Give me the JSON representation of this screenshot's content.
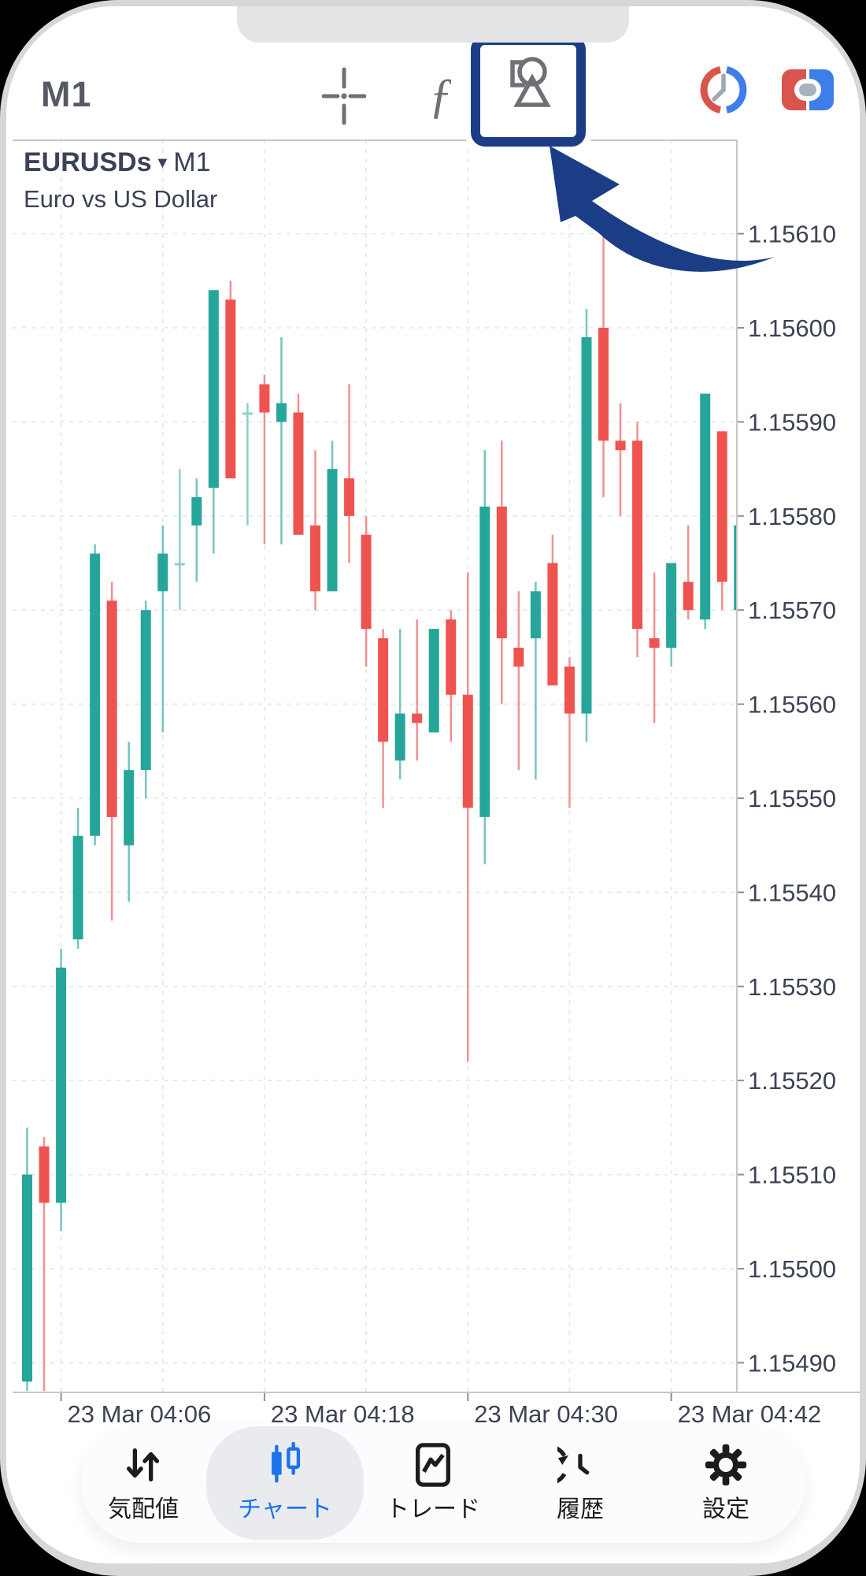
{
  "toolbar": {
    "timeframe": "M1",
    "function_glyph": "ƒ",
    "icons": [
      "crosshair-icon",
      "function-icon",
      "objects-icon",
      "session-clock-icon",
      "trade-panel-icon"
    ]
  },
  "chart_header": {
    "symbol": "EURUSDs",
    "dropdown": "▼",
    "timeframe": "M1",
    "description": "Euro vs US Dollar"
  },
  "chart_data": {
    "type": "candlestick",
    "symbol": "EURUSDs",
    "timeframe": "M1",
    "title": "EURUSDs M1 — Euro vs US Dollar",
    "grid": true,
    "legend": "none",
    "y_axis_side": "right",
    "y_tick_labels": [
      "1.15610",
      "1.15600",
      "1.15590",
      "1.15580",
      "1.15570",
      "1.15560",
      "1.15550",
      "1.15540",
      "1.15530",
      "1.15520",
      "1.15510",
      "1.15500",
      "1.15490"
    ],
    "x_tick_labels": [
      "23 Mar 04:06",
      "23 Mar 04:18",
      "23 Mar 04:30",
      "23 Mar 04:42"
    ],
    "ylim": [
      1.15487,
      1.1562
    ],
    "colors": {
      "bull": "#26a69a",
      "bear": "#ef5350",
      "bull_wick": "#74c5bd",
      "bear_wick": "#f2918f",
      "doji": "#8fcfc8",
      "grid": "#dce8f0",
      "axis": "#c3c8cf",
      "text": "#3d4254"
    },
    "candles": [
      {
        "t": "04:04",
        "o": 1.15488,
        "h": 1.15515,
        "l": 1.15487,
        "c": 1.1551
      },
      {
        "t": "04:05",
        "o": 1.15513,
        "h": 1.15514,
        "l": 1.15487,
        "c": 1.15507
      },
      {
        "t": "04:06",
        "o": 1.15507,
        "h": 1.15534,
        "l": 1.15504,
        "c": 1.15532
      },
      {
        "t": "04:07",
        "o": 1.15535,
        "h": 1.15549,
        "l": 1.15534,
        "c": 1.15546
      },
      {
        "t": "04:08",
        "o": 1.15546,
        "h": 1.15577,
        "l": 1.15545,
        "c": 1.15576
      },
      {
        "t": "04:09",
        "o": 1.15571,
        "h": 1.15573,
        "l": 1.15537,
        "c": 1.15548
      },
      {
        "t": "04:10",
        "o": 1.15545,
        "h": 1.15556,
        "l": 1.15539,
        "c": 1.15553
      },
      {
        "t": "04:11",
        "o": 1.15553,
        "h": 1.15571,
        "l": 1.1555,
        "c": 1.1557
      },
      {
        "t": "04:12",
        "o": 1.15572,
        "h": 1.15579,
        "l": 1.15557,
        "c": 1.15576
      },
      {
        "t": "04:13",
        "o": 1.15575,
        "h": 1.15585,
        "l": 1.1557,
        "c": 1.15575
      },
      {
        "t": "04:14",
        "o": 1.15579,
        "h": 1.15584,
        "l": 1.15573,
        "c": 1.15582
      },
      {
        "t": "04:15",
        "o": 1.15583,
        "h": 1.15604,
        "l": 1.15576,
        "c": 1.15604
      },
      {
        "t": "04:16",
        "o": 1.15603,
        "h": 1.15605,
        "l": 1.15584,
        "c": 1.15584
      },
      {
        "t": "04:17",
        "o": 1.15591,
        "h": 1.15592,
        "l": 1.15579,
        "c": 1.15591
      },
      {
        "t": "04:18",
        "o": 1.15594,
        "h": 1.15595,
        "l": 1.15577,
        "c": 1.15591
      },
      {
        "t": "04:19",
        "o": 1.1559,
        "h": 1.15599,
        "l": 1.15577,
        "c": 1.15592
      },
      {
        "t": "04:20",
        "o": 1.15591,
        "h": 1.15593,
        "l": 1.15578,
        "c": 1.15578
      },
      {
        "t": "04:21",
        "o": 1.15579,
        "h": 1.15587,
        "l": 1.1557,
        "c": 1.15572
      },
      {
        "t": "04:22",
        "o": 1.15572,
        "h": 1.15588,
        "l": 1.15572,
        "c": 1.15585
      },
      {
        "t": "04:23",
        "o": 1.15584,
        "h": 1.15594,
        "l": 1.15575,
        "c": 1.1558
      },
      {
        "t": "04:24",
        "o": 1.15578,
        "h": 1.1558,
        "l": 1.15564,
        "c": 1.15568
      },
      {
        "t": "04:25",
        "o": 1.15567,
        "h": 1.15568,
        "l": 1.15549,
        "c": 1.15556
      },
      {
        "t": "04:26",
        "o": 1.15554,
        "h": 1.15568,
        "l": 1.15552,
        "c": 1.15559
      },
      {
        "t": "04:27",
        "o": 1.15559,
        "h": 1.15569,
        "l": 1.15554,
        "c": 1.15558
      },
      {
        "t": "04:28",
        "o": 1.15557,
        "h": 1.15568,
        "l": 1.15557,
        "c": 1.15568
      },
      {
        "t": "04:29",
        "o": 1.15569,
        "h": 1.1557,
        "l": 1.15556,
        "c": 1.15561
      },
      {
        "t": "04:30",
        "o": 1.15561,
        "h": 1.15574,
        "l": 1.15522,
        "c": 1.15549
      },
      {
        "t": "04:31",
        "o": 1.15548,
        "h": 1.15587,
        "l": 1.15543,
        "c": 1.15581
      },
      {
        "t": "04:32",
        "o": 1.15581,
        "h": 1.15588,
        "l": 1.1556,
        "c": 1.15567
      },
      {
        "t": "04:33",
        "o": 1.15566,
        "h": 1.15572,
        "l": 1.15553,
        "c": 1.15564
      },
      {
        "t": "04:34",
        "o": 1.15567,
        "h": 1.15573,
        "l": 1.15552,
        "c": 1.15572
      },
      {
        "t": "04:35",
        "o": 1.15575,
        "h": 1.15578,
        "l": 1.15562,
        "c": 1.15562
      },
      {
        "t": "04:36",
        "o": 1.15564,
        "h": 1.15565,
        "l": 1.15549,
        "c": 1.15559
      },
      {
        "t": "04:37",
        "o": 1.15559,
        "h": 1.15602,
        "l": 1.15556,
        "c": 1.15599
      },
      {
        "t": "04:38",
        "o": 1.156,
        "h": 1.15612,
        "l": 1.15582,
        "c": 1.15588
      },
      {
        "t": "04:39",
        "o": 1.15588,
        "h": 1.15592,
        "l": 1.1558,
        "c": 1.15587
      },
      {
        "t": "04:40",
        "o": 1.15588,
        "h": 1.1559,
        "l": 1.15565,
        "c": 1.15568
      },
      {
        "t": "04:41",
        "o": 1.15567,
        "h": 1.15574,
        "l": 1.15558,
        "c": 1.15566
      },
      {
        "t": "04:42",
        "o": 1.15566,
        "h": 1.15575,
        "l": 1.15564,
        "c": 1.15575
      },
      {
        "t": "04:43",
        "o": 1.15573,
        "h": 1.15579,
        "l": 1.15569,
        "c": 1.1557
      },
      {
        "t": "04:44",
        "o": 1.15569,
        "h": 1.15593,
        "l": 1.15568,
        "c": 1.15593
      },
      {
        "t": "04:45",
        "o": 1.15589,
        "h": 1.15589,
        "l": 1.1557,
        "c": 1.15573
      },
      {
        "t": "04:46",
        "o": 1.1557,
        "h": 1.15579,
        "l": 1.1557,
        "c": 1.15579
      }
    ]
  },
  "nav": {
    "items": [
      {
        "id": "quotes",
        "label": "気配値",
        "icon": "arrows-up-down-icon",
        "active": false
      },
      {
        "id": "charts",
        "label": "チャート",
        "icon": "candlestick-icon",
        "active": true
      },
      {
        "id": "trade",
        "label": "トレード",
        "icon": "line-chart-icon",
        "active": false
      },
      {
        "id": "history",
        "label": "履歴",
        "icon": "history-clock-icon",
        "active": false
      },
      {
        "id": "settings",
        "label": "設定",
        "icon": "gear-icon",
        "active": false
      }
    ]
  },
  "annotation": {
    "type": "arrow-callout",
    "highlighted_button": "objects-button",
    "color": "#1b3d85"
  }
}
